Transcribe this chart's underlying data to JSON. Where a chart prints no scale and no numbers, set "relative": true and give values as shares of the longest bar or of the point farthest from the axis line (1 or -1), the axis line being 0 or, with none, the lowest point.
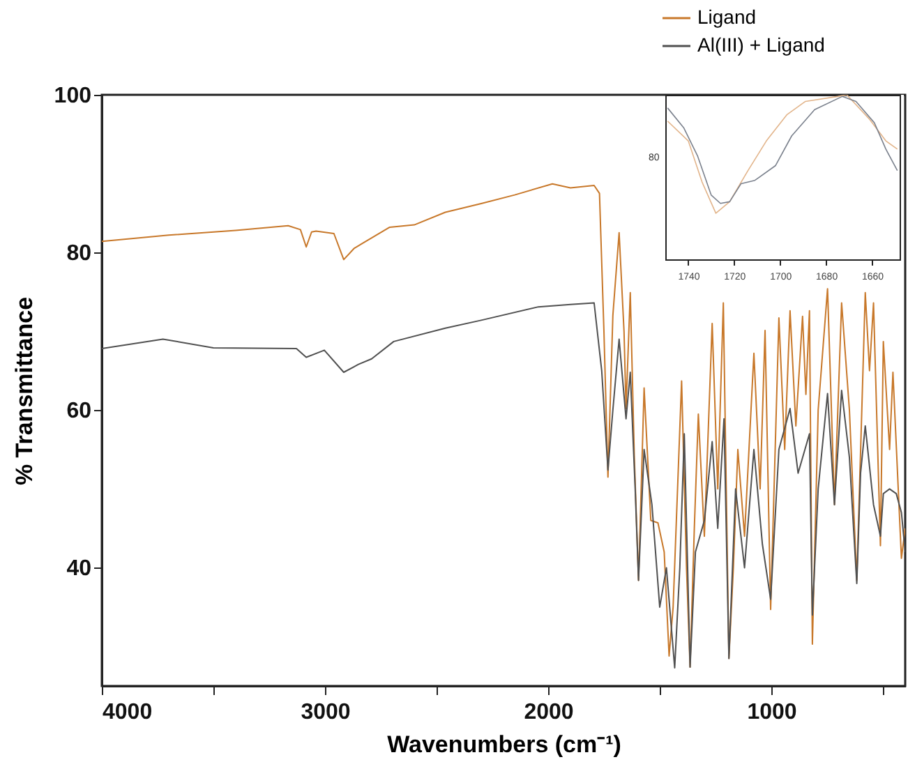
{
  "chart_data": [
    {
      "type": "line",
      "xlabel": "Wavenumbers (cm⁻¹)",
      "ylabel": "% Transmittance",
      "xlim": [
        4000,
        400
      ],
      "ylim": [
        25,
        100
      ],
      "xticks": [
        4000,
        {
          "value": 3500,
          "label": null
        },
        3000,
        {
          "value": 2500,
          "label": null
        },
        2000,
        {
          "value": 1500,
          "label": null
        },
        1000,
        {
          "value": 500,
          "label": null
        }
      ],
      "yticks": [
        40,
        60,
        80,
        100
      ],
      "legend": "top right",
      "series": [
        {
          "name": "Ligand",
          "color": "#c8782a",
          "x": [
            4000,
            3700,
            3400,
            3165,
            3110,
            3084,
            3060,
            3040,
            2960,
            2916,
            2870,
            2835,
            2710,
            2600,
            2461,
            2300,
            2150,
            1981,
            1900,
            1794,
            1770,
            1750,
            1732,
            1710,
            1682,
            1660,
            1651,
            1632,
            1614,
            1595,
            1570,
            1540,
            1508,
            1480,
            1458,
            1440,
            1402,
            1380,
            1364,
            1345,
            1327,
            1300,
            1265,
            1240,
            1215,
            1190,
            1170,
            1150,
            1120,
            1078,
            1050,
            1028,
            1003,
            966,
            940,
            916,
            890,
            860,
            845,
            829,
            816,
            790,
            748,
            717,
            685,
            650,
            617,
            579,
            560,
            542,
            511,
            498,
            470,
            455,
            417,
            400
          ],
          "values": [
            81.4,
            82.2,
            82.8,
            83.4,
            82.9,
            80.7,
            82.6,
            82.7,
            82.4,
            79.1,
            80.5,
            81.1,
            83.2,
            83.5,
            85.1,
            86.2,
            87.3,
            88.7,
            88.2,
            88.5,
            87.5,
            70,
            51.5,
            72,
            82.5,
            70,
            60.2,
            74.9,
            54.2,
            38.4,
            62.8,
            46,
            45.7,
            42,
            28.8,
            35,
            63.7,
            40,
            27.4,
            45,
            59.5,
            44,
            71,
            50,
            73.6,
            28.5,
            40,
            55,
            44,
            67.2,
            50,
            70.1,
            34.7,
            71.7,
            55,
            72.6,
            58,
            71.9,
            62,
            72.6,
            30.3,
            60,
            75.4,
            48,
            73.6,
            60,
            38.4,
            74.9,
            65,
            73.6,
            42.8,
            68.7,
            55,
            64.8,
            41.2,
            45
          ]
        },
        {
          "name": "Al(III) + Ligand",
          "color": "#505050",
          "x": [
            4000,
            3726,
            3500,
            3128,
            3084,
            3003,
            2916,
            2850,
            2791,
            2692,
            2461,
            2300,
            2044,
            1900,
            1794,
            1760,
            1732,
            1710,
            1682,
            1651,
            1632,
            1610,
            1595,
            1570,
            1535,
            1500,
            1470,
            1433,
            1410,
            1390,
            1364,
            1340,
            1300,
            1265,
            1240,
            1212,
            1190,
            1160,
            1120,
            1078,
            1040,
            1003,
            966,
            916,
            880,
            829,
            816,
            790,
            748,
            717,
            685,
            650,
            617,
            600,
            579,
            542,
            511,
            498,
            470,
            440,
            417,
            400
          ],
          "values": [
            67.8,
            69,
            67.9,
            67.8,
            66.7,
            67.6,
            64.8,
            65.8,
            66.5,
            68.7,
            70.4,
            71.4,
            73.1,
            73.4,
            73.6,
            65,
            52.4,
            60,
            69,
            58.9,
            64.8,
            50,
            38.4,
            55,
            48,
            35,
            40,
            27.3,
            40,
            57,
            27.4,
            42,
            46,
            56,
            45,
            58.9,
            28.5,
            50,
            40,
            55,
            43,
            36,
            55,
            60.2,
            52,
            57,
            34,
            50,
            62.1,
            48,
            62.5,
            54,
            38,
            52,
            58,
            48,
            44,
            49.4,
            50,
            49.4,
            47,
            42
          ]
        }
      ]
    },
    {
      "type": "line",
      "relative": true,
      "xlim": [
        1750,
        1648
      ],
      "xticks": [
        1740,
        1720,
        1700,
        1680,
        1660
      ],
      "annotations": [
        "80"
      ],
      "series": [
        {
          "color": "#e2b48a",
          "x": [
            1749,
            1740,
            1734,
            1728,
            1722,
            1714,
            1706,
            1697,
            1689,
            1675,
            1671,
            1661,
            1654,
            1649
          ],
          "values": [
            0.84,
            0.72,
            0.47,
            0.28,
            0.35,
            0.54,
            0.72,
            0.88,
            0.96,
            0.99,
            1.0,
            0.85,
            0.72,
            0.67
          ]
        },
        {
          "color": "#7a808c",
          "x": [
            1749,
            1742,
            1736,
            1730,
            1726,
            1722,
            1717,
            1711,
            1702,
            1695,
            1685,
            1673,
            1667,
            1659,
            1654,
            1649
          ],
          "values": [
            0.92,
            0.8,
            0.63,
            0.39,
            0.34,
            0.35,
            0.46,
            0.48,
            0.57,
            0.75,
            0.91,
            0.99,
            0.96,
            0.83,
            0.67,
            0.54
          ]
        }
      ]
    }
  ]
}
